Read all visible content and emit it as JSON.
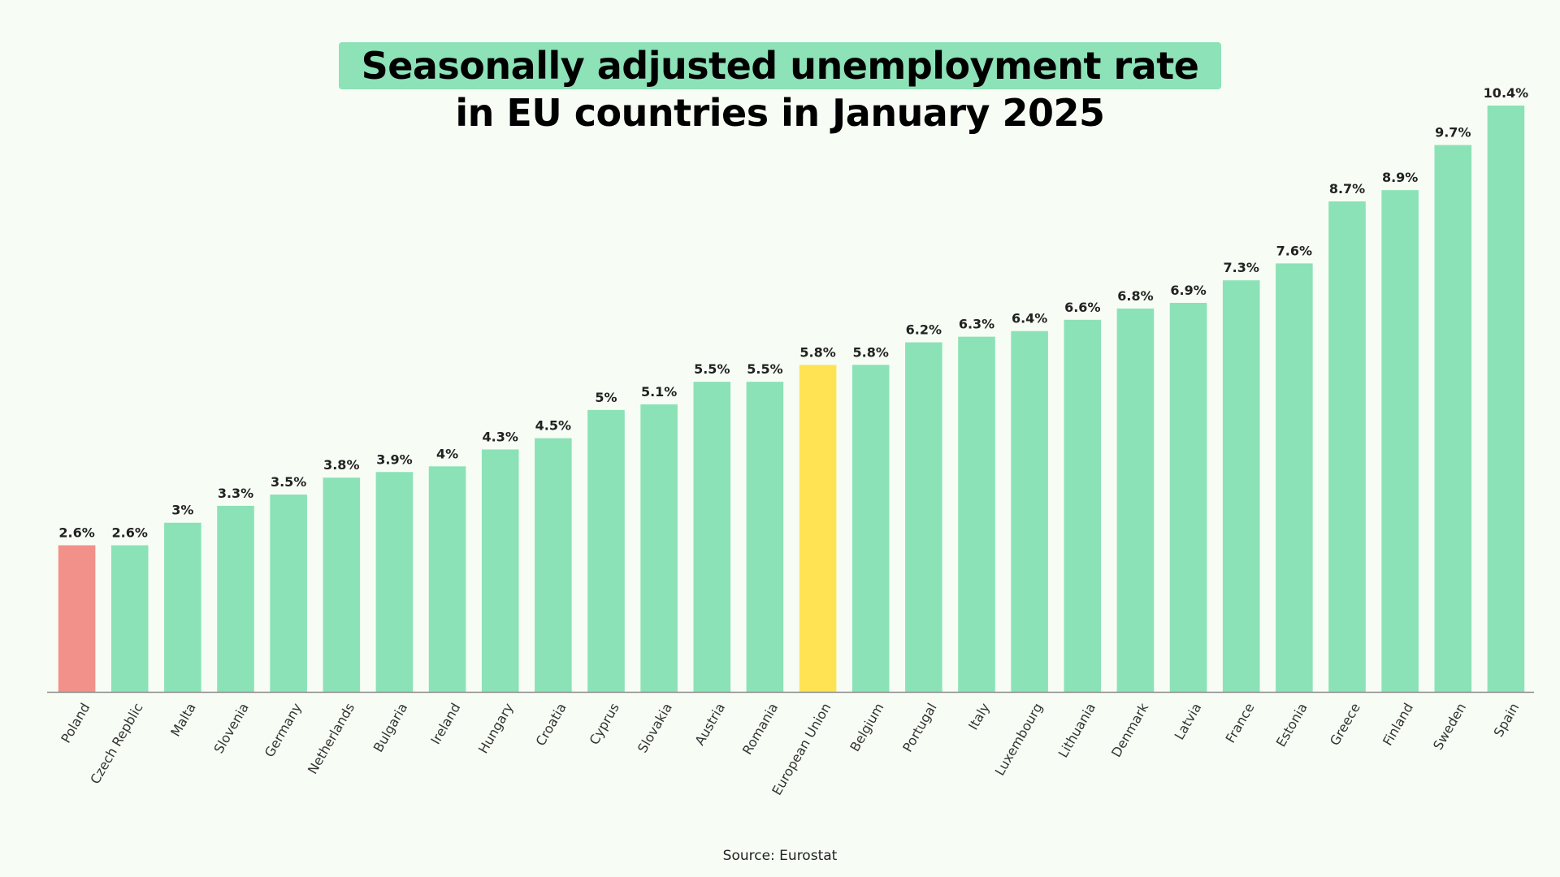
{
  "title": {
    "line1": "Seasonally adjusted unemployment rate",
    "line2": "in EU countries in January 2025"
  },
  "source": "Source: Eurostat",
  "colors": {
    "default_bar": "#8be2b7",
    "highlight_poland": "#f2918a",
    "highlight_eu": "#ffe352",
    "axis": "#8a8a8a",
    "background": "#f7fdf5"
  },
  "chart_data": {
    "type": "bar",
    "title": "Seasonally adjusted unemployment rate in EU countries in January 2025",
    "xlabel": "",
    "ylabel": "",
    "unit": "%",
    "ylim": [
      0,
      10.4
    ],
    "grid": false,
    "categories": [
      "Poland",
      "Czech Repblic",
      "Malta",
      "Slovenia",
      "Germany",
      "Netherlands",
      "Bulgaria",
      "Ireland",
      "Hungary",
      "Croatia",
      "Cyprus",
      "Slovakia",
      "Austria",
      "Romania",
      "European Union",
      "Belgium",
      "Portugal",
      "Italy",
      "Luxembourg",
      "Lithuania",
      "Denmark",
      "Latvia",
      "France",
      "Estonia",
      "Greece",
      "Finland",
      "Sweden",
      "Spain"
    ],
    "values": [
      2.6,
      2.6,
      3,
      3.3,
      3.5,
      3.8,
      3.9,
      4,
      4.3,
      4.5,
      5,
      5.1,
      5.5,
      5.5,
      5.8,
      5.8,
      6.2,
      6.3,
      6.4,
      6.6,
      6.8,
      6.9,
      7.3,
      7.6,
      8.7,
      8.9,
      9.7,
      10.4
    ],
    "labels": [
      "2.6%",
      "2.6%",
      "3%",
      "3.3%",
      "3.5%",
      "3.8%",
      "3.9%",
      "4%",
      "4.3%",
      "4.5%",
      "5%",
      "5.1%",
      "5.5%",
      "5.5%",
      "5.8%",
      "5.8%",
      "6.2%",
      "6.3%",
      "6.4%",
      "6.6%",
      "6.8%",
      "6.9%",
      "7.3%",
      "7.6%",
      "8.7%",
      "8.9%",
      "9.7%",
      "10.4%"
    ],
    "highlights": {
      "Poland": "highlight_poland",
      "European Union": "highlight_eu"
    }
  }
}
